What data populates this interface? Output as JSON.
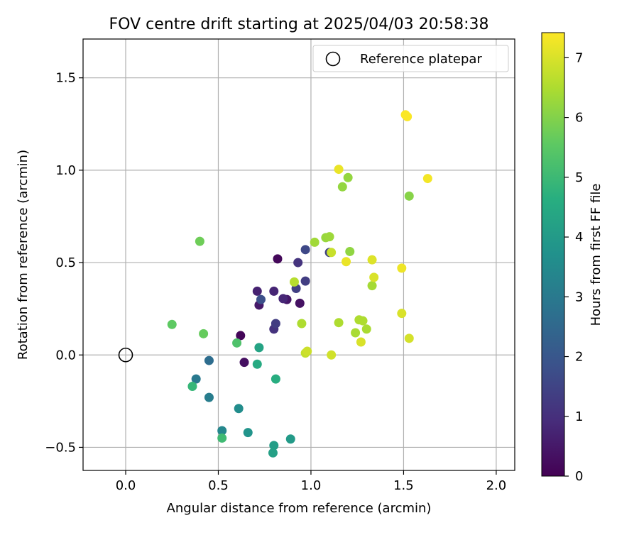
{
  "chart_data": {
    "type": "scatter",
    "title": "FOV centre drift starting at 2025/04/03 20:58:38",
    "xlabel": "Angular distance from reference (arcmin)",
    "ylabel": "Rotation from reference (arcmin)",
    "xlim": [
      -0.23,
      2.1
    ],
    "ylim": [
      -0.625,
      1.71
    ],
    "xticks": [
      0.0,
      0.5,
      1.0,
      1.5,
      2.0
    ],
    "xtick_labels": [
      "0.0",
      "0.5",
      "1.0",
      "1.5",
      "2.0"
    ],
    "yticks": [
      -0.5,
      0.0,
      0.5,
      1.0,
      1.5
    ],
    "ytick_labels": [
      "−0.5",
      "0.0",
      "0.5",
      "1.0",
      "1.5"
    ],
    "grid": true,
    "legend": {
      "position": "top-right",
      "entries": [
        {
          "label": "Reference platepar",
          "marker": "open-circle"
        }
      ]
    },
    "reference_point": {
      "x": 0.0,
      "y": 0.0
    },
    "colorbar": {
      "label": "Hours from first FF file",
      "colormap": "viridis",
      "range": [
        0,
        7.42
      ],
      "ticks": [
        0,
        1,
        2,
        3,
        4,
        5,
        6,
        7
      ],
      "tick_labels": [
        "0",
        "1",
        "2",
        "3",
        "4",
        "5",
        "6",
        "7"
      ]
    },
    "points": [
      {
        "x": 0.62,
        "y": 0.105,
        "c": 0.1
      },
      {
        "x": 0.82,
        "y": 0.52,
        "c": 0.15
      },
      {
        "x": 0.64,
        "y": -0.04,
        "c": 0.3
      },
      {
        "x": 0.94,
        "y": 0.28,
        "c": 0.35
      },
      {
        "x": 0.87,
        "y": 0.3,
        "c": 0.45
      },
      {
        "x": 0.72,
        "y": 0.27,
        "c": 0.5
      },
      {
        "x": 0.71,
        "y": 0.345,
        "c": 0.7
      },
      {
        "x": 0.8,
        "y": 0.345,
        "c": 0.75
      },
      {
        "x": 0.85,
        "y": 0.305,
        "c": 0.8
      },
      {
        "x": 0.8,
        "y": 0.14,
        "c": 1.05
      },
      {
        "x": 0.93,
        "y": 0.5,
        "c": 1.1
      },
      {
        "x": 0.81,
        "y": 0.17,
        "c": 1.3
      },
      {
        "x": 0.97,
        "y": 0.4,
        "c": 1.35
      },
      {
        "x": 0.92,
        "y": 0.36,
        "c": 1.4
      },
      {
        "x": 1.1,
        "y": 0.555,
        "c": 1.45
      },
      {
        "x": 0.97,
        "y": 0.57,
        "c": 1.6
      },
      {
        "x": 0.73,
        "y": 0.3,
        "c": 1.8
      },
      {
        "x": 0.45,
        "y": -0.03,
        "c": 2.65
      },
      {
        "x": 0.38,
        "y": -0.13,
        "c": 3.0
      },
      {
        "x": 0.45,
        "y": -0.23,
        "c": 3.1
      },
      {
        "x": 0.61,
        "y": -0.29,
        "c": 3.6
      },
      {
        "x": 0.52,
        "y": -0.41,
        "c": 3.4
      },
      {
        "x": 0.66,
        "y": -0.42,
        "c": 3.8
      },
      {
        "x": 0.89,
        "y": -0.455,
        "c": 4.0
      },
      {
        "x": 0.8,
        "y": -0.49,
        "c": 4.1
      },
      {
        "x": 0.795,
        "y": -0.53,
        "c": 4.2
      },
      {
        "x": 0.72,
        "y": 0.04,
        "c": 4.3
      },
      {
        "x": 0.71,
        "y": -0.05,
        "c": 4.5
      },
      {
        "x": 0.81,
        "y": -0.13,
        "c": 4.6
      },
      {
        "x": 0.36,
        "y": -0.17,
        "c": 4.9
      },
      {
        "x": 0.52,
        "y": -0.45,
        "c": 5.05
      },
      {
        "x": 0.6,
        "y": 0.065,
        "c": 5.3
      },
      {
        "x": 0.25,
        "y": 0.165,
        "c": 5.55
      },
      {
        "x": 0.42,
        "y": 0.115,
        "c": 5.65
      },
      {
        "x": 0.4,
        "y": 0.615,
        "c": 5.75
      },
      {
        "x": 1.53,
        "y": 0.86,
        "c": 6.05
      },
      {
        "x": 1.17,
        "y": 0.91,
        "c": 6.2
      },
      {
        "x": 1.2,
        "y": 0.96,
        "c": 6.2
      },
      {
        "x": 1.21,
        "y": 0.56,
        "c": 6.15
      },
      {
        "x": 1.08,
        "y": 0.635,
        "c": 6.25
      },
      {
        "x": 1.1,
        "y": 0.64,
        "c": 6.3
      },
      {
        "x": 1.02,
        "y": 0.61,
        "c": 6.35
      },
      {
        "x": 1.33,
        "y": 0.375,
        "c": 6.4
      },
      {
        "x": 1.3,
        "y": 0.14,
        "c": 6.45
      },
      {
        "x": 1.24,
        "y": 0.12,
        "c": 6.45
      },
      {
        "x": 1.26,
        "y": 0.19,
        "c": 6.5
      },
      {
        "x": 1.28,
        "y": 0.185,
        "c": 6.5
      },
      {
        "x": 1.15,
        "y": 0.175,
        "c": 6.5
      },
      {
        "x": 0.95,
        "y": 0.17,
        "c": 6.5
      },
      {
        "x": 0.91,
        "y": 0.395,
        "c": 6.6
      },
      {
        "x": 1.11,
        "y": 0.555,
        "c": 6.8
      },
      {
        "x": 0.97,
        "y": 0.01,
        "c": 6.75
      },
      {
        "x": 0.98,
        "y": 0.02,
        "c": 6.85
      },
      {
        "x": 1.11,
        "y": 0.0,
        "c": 6.9
      },
      {
        "x": 1.27,
        "y": 0.07,
        "c": 7.0
      },
      {
        "x": 1.34,
        "y": 0.42,
        "c": 7.0
      },
      {
        "x": 1.33,
        "y": 0.515,
        "c": 7.05
      },
      {
        "x": 1.53,
        "y": 0.09,
        "c": 6.95
      },
      {
        "x": 1.49,
        "y": 0.225,
        "c": 7.0
      },
      {
        "x": 1.19,
        "y": 0.505,
        "c": 7.2
      },
      {
        "x": 1.49,
        "y": 0.47,
        "c": 7.25
      },
      {
        "x": 1.15,
        "y": 1.005,
        "c": 7.2
      },
      {
        "x": 1.63,
        "y": 0.955,
        "c": 7.3
      },
      {
        "x": 1.51,
        "y": 1.3,
        "c": 7.38
      },
      {
        "x": 1.52,
        "y": 1.29,
        "c": 7.38
      }
    ]
  }
}
